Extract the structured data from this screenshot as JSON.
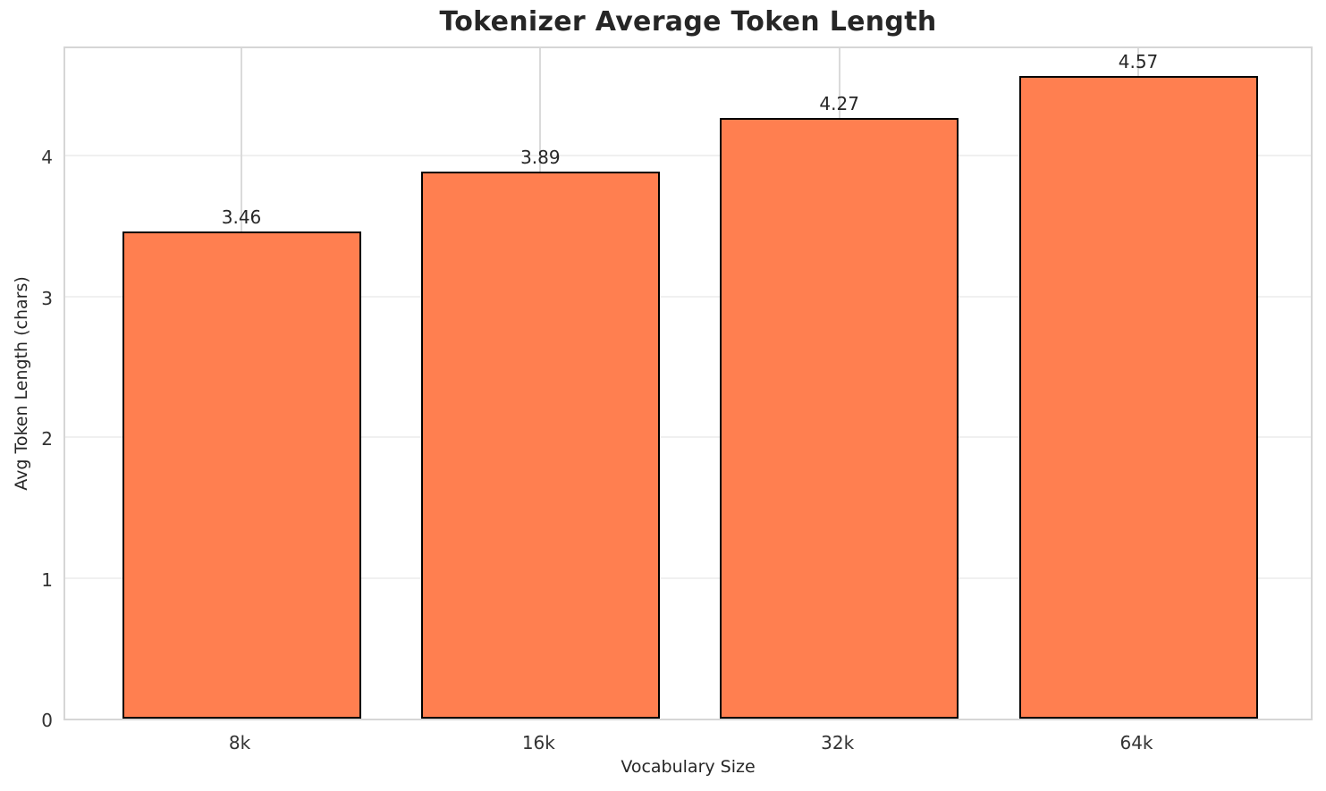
{
  "chart_data": {
    "type": "bar",
    "title": "Tokenizer Average Token Length",
    "xlabel": "Vocabulary Size",
    "ylabel": "Avg Token Length (chars)",
    "categories": [
      "8k",
      "16k",
      "32k",
      "64k"
    ],
    "values": [
      3.46,
      3.89,
      4.27,
      4.57
    ],
    "value_labels": [
      "3.46",
      "3.89",
      "4.27",
      "4.57"
    ],
    "yticks": [
      0,
      1,
      2,
      3,
      4
    ],
    "ylim": [
      0,
      4.79
    ],
    "grid": true,
    "legend_position": "none",
    "bar_color": "#ff7f50",
    "bar_edge_color": "#000000"
  }
}
